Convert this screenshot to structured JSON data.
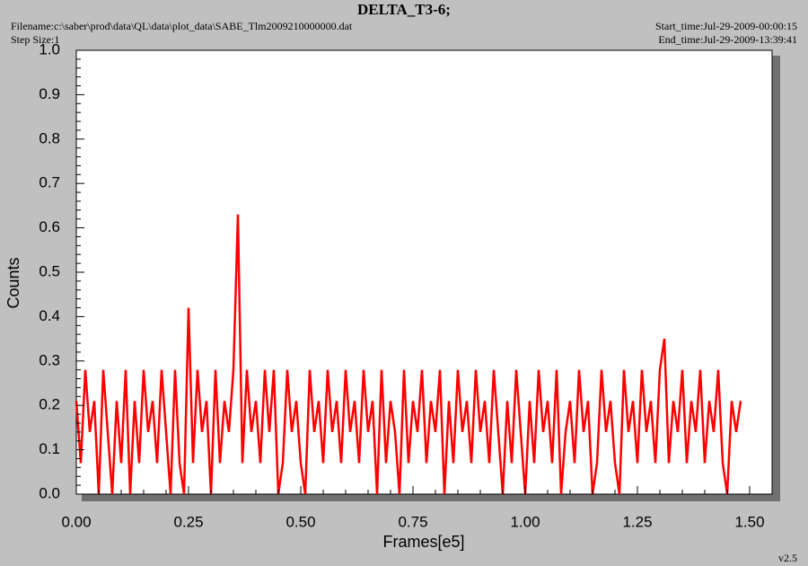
{
  "chart_data": {
    "type": "line",
    "title": "DELTA_T3-6;",
    "filename": "Filename:c:\\saber\\prod\\data\\QL\\data\\plot_data\\SABE_Tlm2009210000000.dat",
    "step_size": "Step Size:1",
    "start_time": "Start_time:Jul-29-2009-00:00:15",
    "end_time": "End_time:Jul-29-2009-13:39:41",
    "version": "v2.5",
    "x_label": "Frames[e5]",
    "y_label": "Counts",
    "x": [
      0,
      0.01,
      0.02,
      0.03,
      0.04,
      0.05,
      0.06,
      0.07,
      0.08,
      0.09,
      0.1,
      0.11,
      0.12,
      0.13,
      0.14,
      0.15,
      0.16,
      0.17,
      0.18,
      0.19,
      0.2,
      0.21,
      0.22,
      0.23,
      0.24,
      0.25,
      0.26,
      0.27,
      0.28,
      0.29,
      0.3,
      0.31,
      0.32,
      0.33,
      0.34,
      0.35,
      0.36,
      0.37,
      0.38,
      0.39,
      0.4,
      0.41,
      0.42,
      0.43,
      0.44,
      0.45,
      0.46,
      0.47,
      0.48,
      0.49,
      0.5,
      0.51,
      0.52,
      0.53,
      0.54,
      0.55,
      0.56,
      0.57,
      0.58,
      0.59,
      0.6,
      0.61,
      0.62,
      0.63,
      0.64,
      0.65,
      0.66,
      0.67,
      0.68,
      0.69,
      0.7,
      0.71,
      0.72,
      0.73,
      0.74,
      0.75,
      0.76,
      0.77,
      0.78,
      0.79,
      0.8,
      0.81,
      0.82,
      0.83,
      0.84,
      0.85,
      0.86,
      0.87,
      0.88,
      0.89,
      0.9,
      0.91,
      0.92,
      0.93,
      0.94,
      0.95,
      0.96,
      0.97,
      0.98,
      0.99,
      1,
      1.01,
      1.02,
      1.03,
      1.04,
      1.05,
      1.06,
      1.07,
      1.08,
      1.09,
      1.1,
      1.11,
      1.12,
      1.13,
      1.14,
      1.15,
      1.16,
      1.17,
      1.18,
      1.19,
      1.2,
      1.21,
      1.22,
      1.23,
      1.24,
      1.25,
      1.26,
      1.27,
      1.28,
      1.29,
      1.3,
      1.31,
      1.32,
      1.33,
      1.34,
      1.35,
      1.36,
      1.37,
      1.38,
      1.39,
      1.4,
      1.41,
      1.42,
      1.43,
      1.44,
      1.45,
      1.46,
      1.47,
      1.48
    ],
    "series": [
      {
        "color": "#ff0000",
        "values": [
          0.21,
          0.07,
          0.28,
          0.14,
          0.21,
          0,
          0.28,
          0.14,
          0,
          0.21,
          0.07,
          0.28,
          0,
          0.21,
          0.07,
          0.28,
          0.14,
          0.21,
          0.07,
          0.28,
          0.14,
          0,
          0.28,
          0.07,
          0,
          0.42,
          0.07,
          0.28,
          0.14,
          0.21,
          0,
          0.28,
          0.07,
          0.21,
          0.14,
          0.28,
          0.63,
          0.07,
          0.28,
          0.14,
          0.21,
          0.07,
          0.28,
          0.14,
          0.28,
          0,
          0.07,
          0.28,
          0.14,
          0.21,
          0.07,
          0,
          0.28,
          0.14,
          0.21,
          0.07,
          0.28,
          0.14,
          0.21,
          0.07,
          0.28,
          0.14,
          0.21,
          0.07,
          0.28,
          0.14,
          0.21,
          0,
          0.28,
          0.07,
          0.21,
          0.14,
          0,
          0.28,
          0.07,
          0.21,
          0.14,
          0.28,
          0.07,
          0.21,
          0.14,
          0.28,
          0,
          0.21,
          0.07,
          0.28,
          0.14,
          0.21,
          0.07,
          0.28,
          0.14,
          0.21,
          0.07,
          0.28,
          0.14,
          0,
          0.21,
          0.07,
          0.28,
          0.14,
          0,
          0.21,
          0.07,
          0.28,
          0.14,
          0.21,
          0.07,
          0.28,
          0,
          0.14,
          0.21,
          0.07,
          0.28,
          0.14,
          0.21,
          0,
          0.07,
          0.28,
          0.14,
          0.21,
          0.07,
          0,
          0.28,
          0.14,
          0.21,
          0.07,
          0.28,
          0.14,
          0.21,
          0.07,
          0.28,
          0.35,
          0.07,
          0.21,
          0.14,
          0.28,
          0.07,
          0.21,
          0.14,
          0.28,
          0.07,
          0.21,
          0.14,
          0.28,
          0.07,
          0,
          0.21,
          0.14,
          0.21
        ]
      }
    ],
    "xlim": [
      0,
      1.55
    ],
    "ylim": [
      0,
      1
    ],
    "xticks": [
      {
        "value": 0,
        "label": "0.00"
      },
      {
        "value": 0.25,
        "label": "0.25"
      },
      {
        "value": 0.5,
        "label": "0.50"
      },
      {
        "value": 0.75,
        "label": "0.75"
      },
      {
        "value": 1,
        "label": "1.00"
      },
      {
        "value": 1.25,
        "label": "1.25"
      },
      {
        "value": 1.5,
        "label": "1.50"
      }
    ],
    "yticks": [
      {
        "value": 0,
        "label": "0.0"
      },
      0.1,
      0.2,
      0.3,
      0.4,
      0.5,
      0.6,
      0.7,
      0.8,
      0.9,
      {
        "value": 1,
        "label": "1.0"
      }
    ]
  }
}
